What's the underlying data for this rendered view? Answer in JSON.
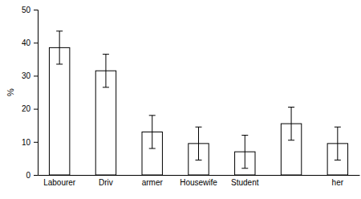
{
  "chart_data": {
    "type": "bar",
    "ylabel": "%",
    "categories": [
      "Labourer",
      "Driv",
      "armer",
      "Housewife",
      "Student",
      null,
      "her"
    ],
    "values": [
      38.5,
      31.5,
      13,
      9.5,
      7,
      15.5,
      9.5
    ],
    "errors": [
      5,
      5,
      5,
      5,
      5,
      5,
      5
    ],
    "color": "#ffffff",
    "ylim": [
      0,
      50
    ],
    "yticks": [
      0,
      10,
      20,
      30,
      40,
      50
    ],
    "grid": false
  }
}
